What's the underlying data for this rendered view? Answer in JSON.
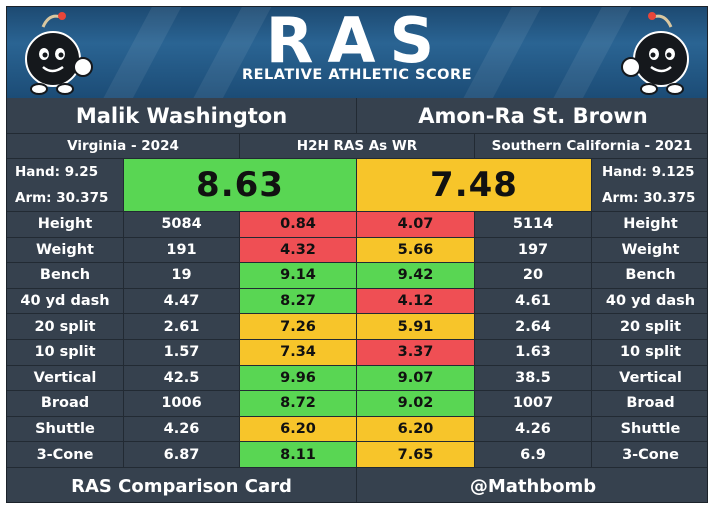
{
  "header": {
    "logo": "RAS",
    "subtitle": "RELATIVE ATHLETIC SCORE",
    "mascot_icon": "bomb-mascot-icon"
  },
  "players": {
    "left": {
      "name": "Malik Washington",
      "school": "Virginia - 2024",
      "hand": "Hand: 9.25",
      "arm": "Arm: 30.375",
      "ras": "8.63",
      "ras_color": "#59d653"
    },
    "right": {
      "name": "Amon-Ra St. Brown",
      "school": "Southern California - 2021",
      "hand": "Hand: 9.125",
      "arm": "Arm: 30.375",
      "ras": "7.48",
      "ras_color": "#f7c52a"
    }
  },
  "comparison_label": "H2H RAS As WR",
  "colors": {
    "green": "#59d653",
    "yellow": "#f7c52a",
    "red": "#ef4f54",
    "panel": "#36414e"
  },
  "rows": [
    {
      "metric": "Height",
      "left_val": "5084",
      "left_score": "0.84",
      "left_color": "red",
      "right_score": "4.07",
      "right_color": "red",
      "right_val": "5114"
    },
    {
      "metric": "Weight",
      "left_val": "191",
      "left_score": "4.32",
      "left_color": "red",
      "right_score": "5.66",
      "right_color": "yellow",
      "right_val": "197"
    },
    {
      "metric": "Bench",
      "left_val": "19",
      "left_score": "9.14",
      "left_color": "green",
      "right_score": "9.42",
      "right_color": "green",
      "right_val": "20"
    },
    {
      "metric": "40 yd dash",
      "left_val": "4.47",
      "left_score": "8.27",
      "left_color": "green",
      "right_score": "4.12",
      "right_color": "red",
      "right_val": "4.61"
    },
    {
      "metric": "20 split",
      "left_val": "2.61",
      "left_score": "7.26",
      "left_color": "yellow",
      "right_score": "5.91",
      "right_color": "yellow",
      "right_val": "2.64"
    },
    {
      "metric": "10 split",
      "left_val": "1.57",
      "left_score": "7.34",
      "left_color": "yellow",
      "right_score": "3.37",
      "right_color": "red",
      "right_val": "1.63"
    },
    {
      "metric": "Vertical",
      "left_val": "42.5",
      "left_score": "9.96",
      "left_color": "green",
      "right_score": "9.07",
      "right_color": "green",
      "right_val": "38.5"
    },
    {
      "metric": "Broad",
      "left_val": "1006",
      "left_score": "8.72",
      "left_color": "green",
      "right_score": "9.02",
      "right_color": "green",
      "right_val": "1007"
    },
    {
      "metric": "Shuttle",
      "left_val": "4.26",
      "left_score": "6.20",
      "left_color": "yellow",
      "right_score": "6.20",
      "right_color": "yellow",
      "right_val": "4.26"
    },
    {
      "metric": "3-Cone",
      "left_val": "6.87",
      "left_score": "8.11",
      "left_color": "green",
      "right_score": "7.65",
      "right_color": "yellow",
      "right_val": "6.9"
    }
  ],
  "footer": {
    "left": "RAS Comparison Card",
    "right": "@Mathbomb"
  }
}
